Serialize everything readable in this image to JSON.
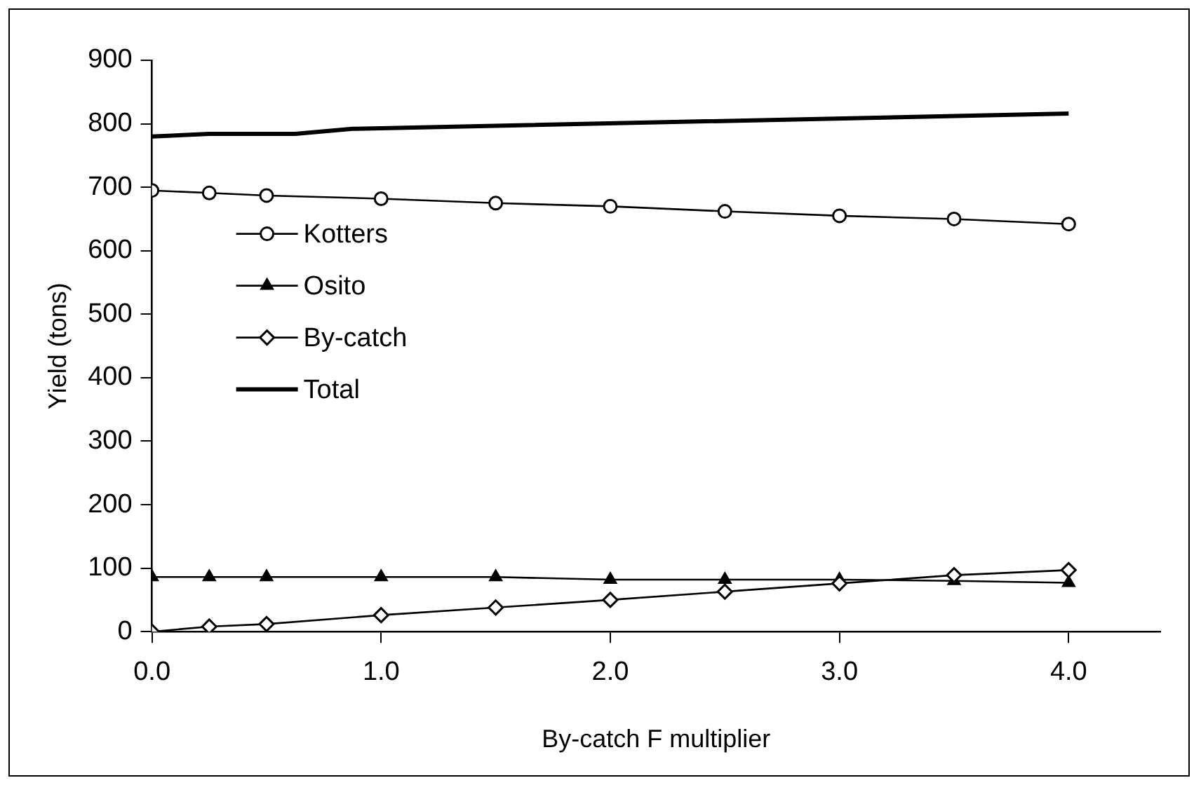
{
  "chart_data": {
    "type": "line",
    "xlabel": "By-catch F multiplier",
    "ylabel": "Yield (tons)",
    "x": [
      0,
      0.25,
      0.5,
      1,
      1.5,
      2,
      2.5,
      3,
      3.5,
      4
    ],
    "series": [
      {
        "name": "Kotters",
        "color": "#000000",
        "marker": "circle",
        "values": [
          695,
          691,
          687,
          682,
          675,
          670,
          662,
          655,
          650,
          642
        ]
      },
      {
        "name": "Osito",
        "color": "#000000",
        "marker": "triangle",
        "values": [
          86,
          86,
          86,
          86,
          86,
          82,
          82,
          82,
          80,
          77
        ]
      },
      {
        "name": "By-catch",
        "color": "#000000",
        "marker": "diamond",
        "values": [
          0,
          8,
          12,
          26,
          38,
          50,
          63,
          76,
          89,
          97
        ]
      },
      {
        "name": "Total",
        "color": "#000000",
        "marker": "none",
        "x": [
          0,
          0.25,
          0.625,
          0.875,
          4
        ],
        "values": [
          780,
          784,
          784,
          792,
          816
        ]
      }
    ],
    "xlim": [
      0,
      4.4
    ],
    "xticks": [
      {
        "value": 0,
        "label": "0.0"
      },
      {
        "value": 1,
        "label": "1.0"
      },
      {
        "value": 2,
        "label": "2.0"
      },
      {
        "value": 3,
        "label": "3.0"
      },
      {
        "value": 4,
        "label": "4.0"
      }
    ],
    "ylim": [
      0,
      900
    ],
    "yticks": [
      0,
      100,
      200,
      300,
      400,
      500,
      600,
      700,
      800,
      900
    ],
    "grid": false,
    "legend": "left"
  }
}
